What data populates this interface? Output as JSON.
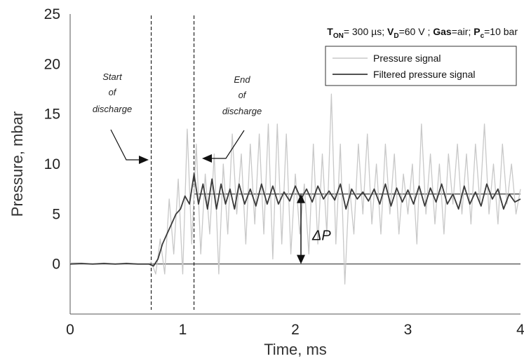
{
  "chart_data": {
    "type": "line",
    "title": "",
    "xlabel": "Time, ms",
    "ylabel": "Pressure, mbar",
    "xlim": [
      0,
      4
    ],
    "ylim": [
      -5,
      25
    ],
    "xticks": [
      0,
      1,
      2,
      3,
      4
    ],
    "yticks": [
      0,
      5,
      10,
      15,
      20,
      25
    ],
    "xtick_labels": [
      "0",
      "1",
      "2",
      "3",
      "4"
    ],
    "ytick_labels": [
      "0",
      "5",
      "10",
      "15",
      "20",
      "25"
    ],
    "grid": false,
    "legend_position": "top-right",
    "parameters": {
      "t_symbol": "T",
      "t_sub": "ON",
      "t_value": "= 300 µs; ",
      "v_symbol": "V",
      "v_sub": "D",
      "v_value": "=60 V ; ",
      "gas_label": "Gas",
      "gas_value": "=air; ",
      "p_symbol": "P",
      "p_sub": "c",
      "p_value": "=10 bar"
    },
    "series": [
      {
        "name": "Pressure signal",
        "color": "#c8c8c8",
        "x": [
          0,
          0.1,
          0.2,
          0.3,
          0.4,
          0.5,
          0.6,
          0.7,
          0.72,
          0.76,
          0.8,
          0.84,
          0.88,
          0.92,
          0.96,
          1.0,
          1.04,
          1.08,
          1.12,
          1.16,
          1.2,
          1.24,
          1.28,
          1.32,
          1.36,
          1.4,
          1.44,
          1.48,
          1.52,
          1.56,
          1.6,
          1.64,
          1.68,
          1.72,
          1.76,
          1.8,
          1.84,
          1.88,
          1.92,
          1.96,
          2.0,
          2.04,
          2.08,
          2.12,
          2.16,
          2.2,
          2.24,
          2.28,
          2.32,
          2.36,
          2.4,
          2.44,
          2.48,
          2.52,
          2.56,
          2.6,
          2.64,
          2.68,
          2.72,
          2.76,
          2.8,
          2.84,
          2.88,
          2.92,
          2.96,
          3.0,
          3.04,
          3.08,
          3.12,
          3.16,
          3.2,
          3.24,
          3.28,
          3.32,
          3.36,
          3.4,
          3.44,
          3.48,
          3.52,
          3.56,
          3.6,
          3.64,
          3.68,
          3.72,
          3.76,
          3.8,
          3.84,
          3.88,
          3.92,
          3.96,
          4.0
        ],
        "y": [
          0.1,
          0.1,
          0,
          0.1,
          0,
          0.1,
          0,
          0,
          0.2,
          -1,
          2.5,
          -1,
          6.5,
          1,
          8.5,
          -1,
          13.5,
          2,
          12,
          1,
          9,
          3,
          11,
          -1,
          10,
          3,
          13,
          5,
          11,
          2,
          12,
          4,
          13,
          3,
          14,
          0.5,
          14,
          2,
          13,
          1,
          9,
          3,
          8,
          1,
          12,
          2,
          11,
          3,
          17,
          2,
          12,
          -2,
          8,
          3,
          12,
          5,
          13,
          4,
          10,
          3,
          12,
          5,
          11,
          3,
          9,
          5,
          10,
          2,
          14,
          5,
          11,
          4,
          10,
          3,
          11,
          6,
          12,
          5,
          11,
          4,
          12,
          6,
          14,
          5,
          10,
          4,
          12,
          6,
          10,
          5,
          7.5
        ]
      },
      {
        "name": "Filtered pressure signal",
        "color": "#3a3a3a",
        "x": [
          0,
          0.1,
          0.2,
          0.3,
          0.4,
          0.5,
          0.6,
          0.7,
          0.74,
          0.78,
          0.82,
          0.86,
          0.9,
          0.94,
          0.98,
          1.02,
          1.06,
          1.1,
          1.14,
          1.18,
          1.22,
          1.26,
          1.3,
          1.34,
          1.38,
          1.42,
          1.46,
          1.5,
          1.55,
          1.6,
          1.65,
          1.7,
          1.75,
          1.8,
          1.85,
          1.9,
          1.95,
          2.0,
          2.05,
          2.1,
          2.15,
          2.2,
          2.25,
          2.3,
          2.35,
          2.4,
          2.45,
          2.5,
          2.55,
          2.6,
          2.65,
          2.7,
          2.75,
          2.8,
          2.85,
          2.9,
          2.95,
          3.0,
          3.05,
          3.1,
          3.15,
          3.2,
          3.25,
          3.3,
          3.35,
          3.4,
          3.45,
          3.5,
          3.55,
          3.6,
          3.65,
          3.7,
          3.75,
          3.8,
          3.85,
          3.9,
          3.95,
          4.0
        ],
        "y": [
          0,
          0.05,
          0,
          0.05,
          0,
          0.05,
          0,
          0,
          -0.2,
          0.5,
          2,
          3,
          4,
          5,
          5.5,
          6.8,
          6,
          9,
          6,
          8,
          5.5,
          8.5,
          5.5,
          8,
          6,
          7.5,
          5.5,
          8,
          6,
          7.5,
          5.8,
          8,
          6,
          7.8,
          6,
          7.2,
          6.3,
          7.8,
          6.5,
          7.5,
          6.2,
          7.8,
          6.5,
          7.3,
          6.4,
          8,
          5.5,
          7.5,
          6.5,
          7.2,
          6.3,
          7.5,
          6,
          8,
          5.8,
          7.6,
          6.2,
          7.4,
          6,
          7.8,
          5.8,
          7.6,
          6.2,
          8,
          6,
          7,
          5.5,
          7.8,
          6,
          7.2,
          5.8,
          8,
          6.5,
          7.5,
          5.5,
          7,
          6.2,
          6.5
        ]
      }
    ],
    "annotations": {
      "start_of_discharge": {
        "lines": [
          "Start",
          "of",
          "discharge"
        ],
        "x": 0.72
      },
      "end_of_discharge": {
        "lines": [
          "End",
          "of",
          "discharge"
        ],
        "x": 1.1
      },
      "delta_p": {
        "label": "ΔP",
        "x": 2.05,
        "from": 0,
        "to": 7
      },
      "baseline_level": 0,
      "plateau_level": 7,
      "plateau_start": 1.1
    }
  }
}
